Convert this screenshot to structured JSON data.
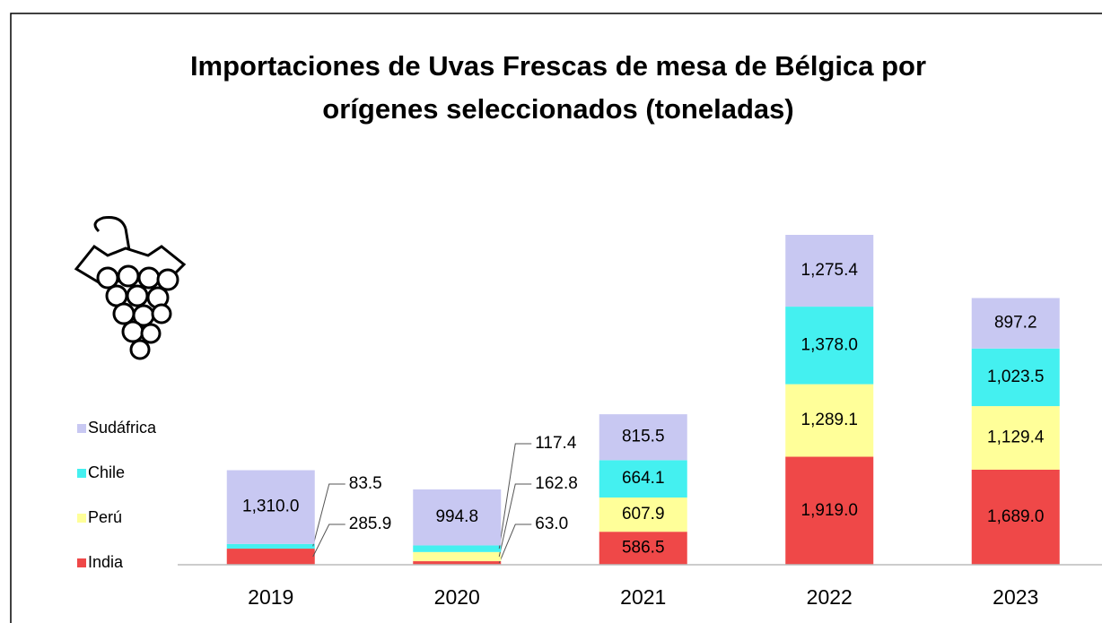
{
  "chart_data": {
    "type": "stacked_bar",
    "title": [
      "Importaciones de Uvas Frescas de mesa de Bélgica por",
      "orígenes seleccionados (toneladas)"
    ],
    "categories": [
      "2019",
      "2020",
      "2021",
      "2022",
      "2023"
    ],
    "series": [
      {
        "name": "India",
        "color": "#ef4848",
        "values": [
          285.9,
          63.0,
          586.5,
          1919.0,
          1689.0
        ],
        "value_labels": [
          "285.9",
          "63.0",
          "586.5",
          "1,919.0",
          "1,689.0"
        ]
      },
      {
        "name": "Perú",
        "color": "#ffff99",
        "values": [
          0,
          162.8,
          607.9,
          1289.1,
          1129.4
        ],
        "value_labels": [
          null,
          "162.8",
          "607.9",
          "1,289.1",
          "1,129.4"
        ]
      },
      {
        "name": "Chile",
        "color": "#44f0f0",
        "values": [
          83.5,
          117.4,
          664.1,
          1378.0,
          1023.5
        ],
        "value_labels": [
          "83.5",
          "117.4",
          "664.1",
          "1,378.0",
          "1,023.5"
        ]
      },
      {
        "name": "Sudáfrica",
        "color": "#c8c8f2",
        "values": [
          1310.0,
          994.8,
          815.5,
          1275.4,
          897.2
        ],
        "value_labels": [
          "1,310.0",
          "994.8",
          "815.5",
          "1,275.4",
          "897.2"
        ]
      }
    ],
    "legend": "left"
  }
}
